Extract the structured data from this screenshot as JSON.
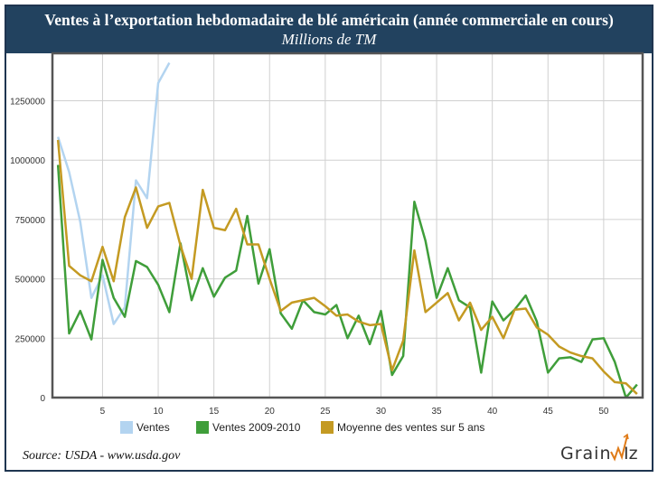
{
  "header": {
    "title": "Ventes à l’exportation hebdomadaire de blé américain (année commerciale en cours)",
    "subtitle": "Millions de TM"
  },
  "source": "Source: USDA - www.usda.gov",
  "logo": "GRAINWIZ",
  "chart_data": {
    "type": "line",
    "title": "Ventes à l’exportation hebdomadaire de blé américain (année commerciale en cours)",
    "subtitle": "Millions de TM",
    "xlabel": "",
    "ylabel": "",
    "xlim": [
      0.5,
      53.5
    ],
    "ylim": [
      0,
      1450000
    ],
    "xticks": [
      5,
      10,
      15,
      20,
      25,
      30,
      35,
      40,
      45,
      50
    ],
    "yticks": [
      0,
      250000,
      500000,
      750000,
      1000000,
      1250000
    ],
    "ytick_labels": [
      "0",
      "250000",
      "500000",
      "750000",
      "1000000",
      "1250000"
    ],
    "grid": true,
    "legend_position": "bottom",
    "series": [
      {
        "name": "Ventes",
        "color": "#b3d4f0",
        "x": [
          1,
          2,
          3,
          4,
          5,
          6,
          7,
          8,
          9,
          10,
          11
        ],
        "values": [
          1098000,
          950000,
          740000,
          420000,
          515000,
          310000,
          380000,
          915000,
          840000,
          1325000,
          1410000
        ]
      },
      {
        "name": "Ventes 2009-2010",
        "color": "#3f9e3a",
        "x": [
          1,
          2,
          3,
          4,
          5,
          6,
          7,
          8,
          9,
          10,
          11,
          12,
          13,
          14,
          15,
          16,
          17,
          18,
          19,
          20,
          21,
          22,
          23,
          24,
          25,
          26,
          27,
          28,
          29,
          30,
          31,
          32,
          33,
          34,
          35,
          36,
          37,
          38,
          39,
          40,
          41,
          42,
          43,
          44,
          45,
          46,
          47,
          48,
          49,
          50,
          51,
          52,
          53
        ],
        "values": [
          980000,
          270000,
          365000,
          245000,
          580000,
          420000,
          340000,
          575000,
          550000,
          475000,
          360000,
          650000,
          410000,
          545000,
          425000,
          505000,
          535000,
          765000,
          480000,
          625000,
          355000,
          290000,
          410000,
          360000,
          350000,
          390000,
          250000,
          345000,
          225000,
          365000,
          95000,
          175000,
          825000,
          660000,
          420000,
          545000,
          410000,
          380000,
          105000,
          405000,
          325000,
          370000,
          430000,
          320000,
          105000,
          165000,
          170000,
          150000,
          245000,
          250000,
          150000,
          0,
          55000
        ]
      },
      {
        "name": "Moyenne des ventes sur 5 ans",
        "color": "#c49a22",
        "x": [
          1,
          2,
          3,
          4,
          5,
          6,
          7,
          8,
          9,
          10,
          11,
          12,
          13,
          14,
          15,
          16,
          17,
          18,
          19,
          20,
          21,
          22,
          23,
          24,
          25,
          26,
          27,
          28,
          29,
          30,
          31,
          32,
          33,
          34,
          35,
          36,
          37,
          38,
          39,
          40,
          41,
          42,
          43,
          44,
          45,
          46,
          47,
          48,
          49,
          50,
          51,
          52,
          53
        ],
        "values": [
          1085000,
          555000,
          515000,
          490000,
          635000,
          490000,
          760000,
          885000,
          715000,
          805000,
          820000,
          640000,
          500000,
          875000,
          715000,
          705000,
          795000,
          645000,
          645000,
          500000,
          365000,
          400000,
          410000,
          420000,
          385000,
          345000,
          350000,
          320000,
          305000,
          310000,
          115000,
          240000,
          620000,
          360000,
          400000,
          440000,
          325000,
          400000,
          285000,
          340000,
          250000,
          370000,
          375000,
          295000,
          265000,
          215000,
          190000,
          175000,
          165000,
          110000,
          65000,
          60000,
          15000
        ]
      }
    ]
  }
}
